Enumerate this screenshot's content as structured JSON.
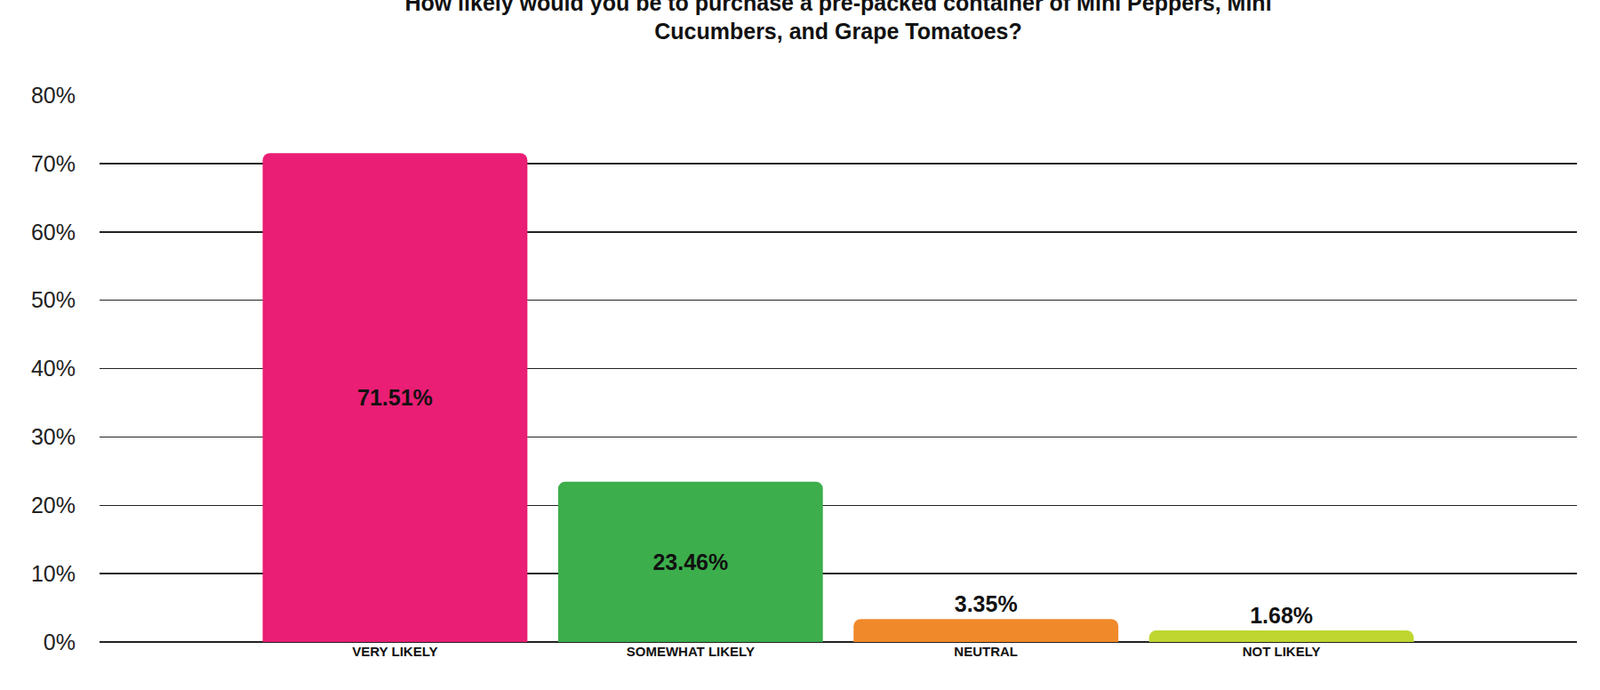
{
  "chart_data": {
    "type": "bar",
    "title": "How likely would you be to purchase a pre-packed container of Mini Peppers, Mini\nCucumbers, and Grape Tomatoes?",
    "categories": [
      "VERY LIKELY",
      "SOMEWHAT LIKELY",
      "NEUTRAL",
      "NOT LIKELY"
    ],
    "values": [
      71.51,
      23.46,
      3.35,
      1.68
    ],
    "value_labels": [
      "71.51%",
      "23.46%",
      "3.35%",
      "1.68%"
    ],
    "colors": [
      "#e91e74",
      "#3cae4c",
      "#f0892a",
      "#bfd630"
    ],
    "ylim": [
      0,
      80
    ],
    "yticks": [
      {
        "value": 0,
        "label": "0%"
      },
      {
        "value": 10,
        "label": "10%"
      },
      {
        "value": 20,
        "label": "20%"
      },
      {
        "value": 30,
        "label": "30%"
      },
      {
        "value": 40,
        "label": "40%"
      },
      {
        "value": 50,
        "label": "50%"
      },
      {
        "value": 60,
        "label": "60%"
      },
      {
        "value": 70,
        "label": "70%"
      },
      {
        "value": 80,
        "label": "80%"
      }
    ],
    "grid": true,
    "data_labels": true
  }
}
